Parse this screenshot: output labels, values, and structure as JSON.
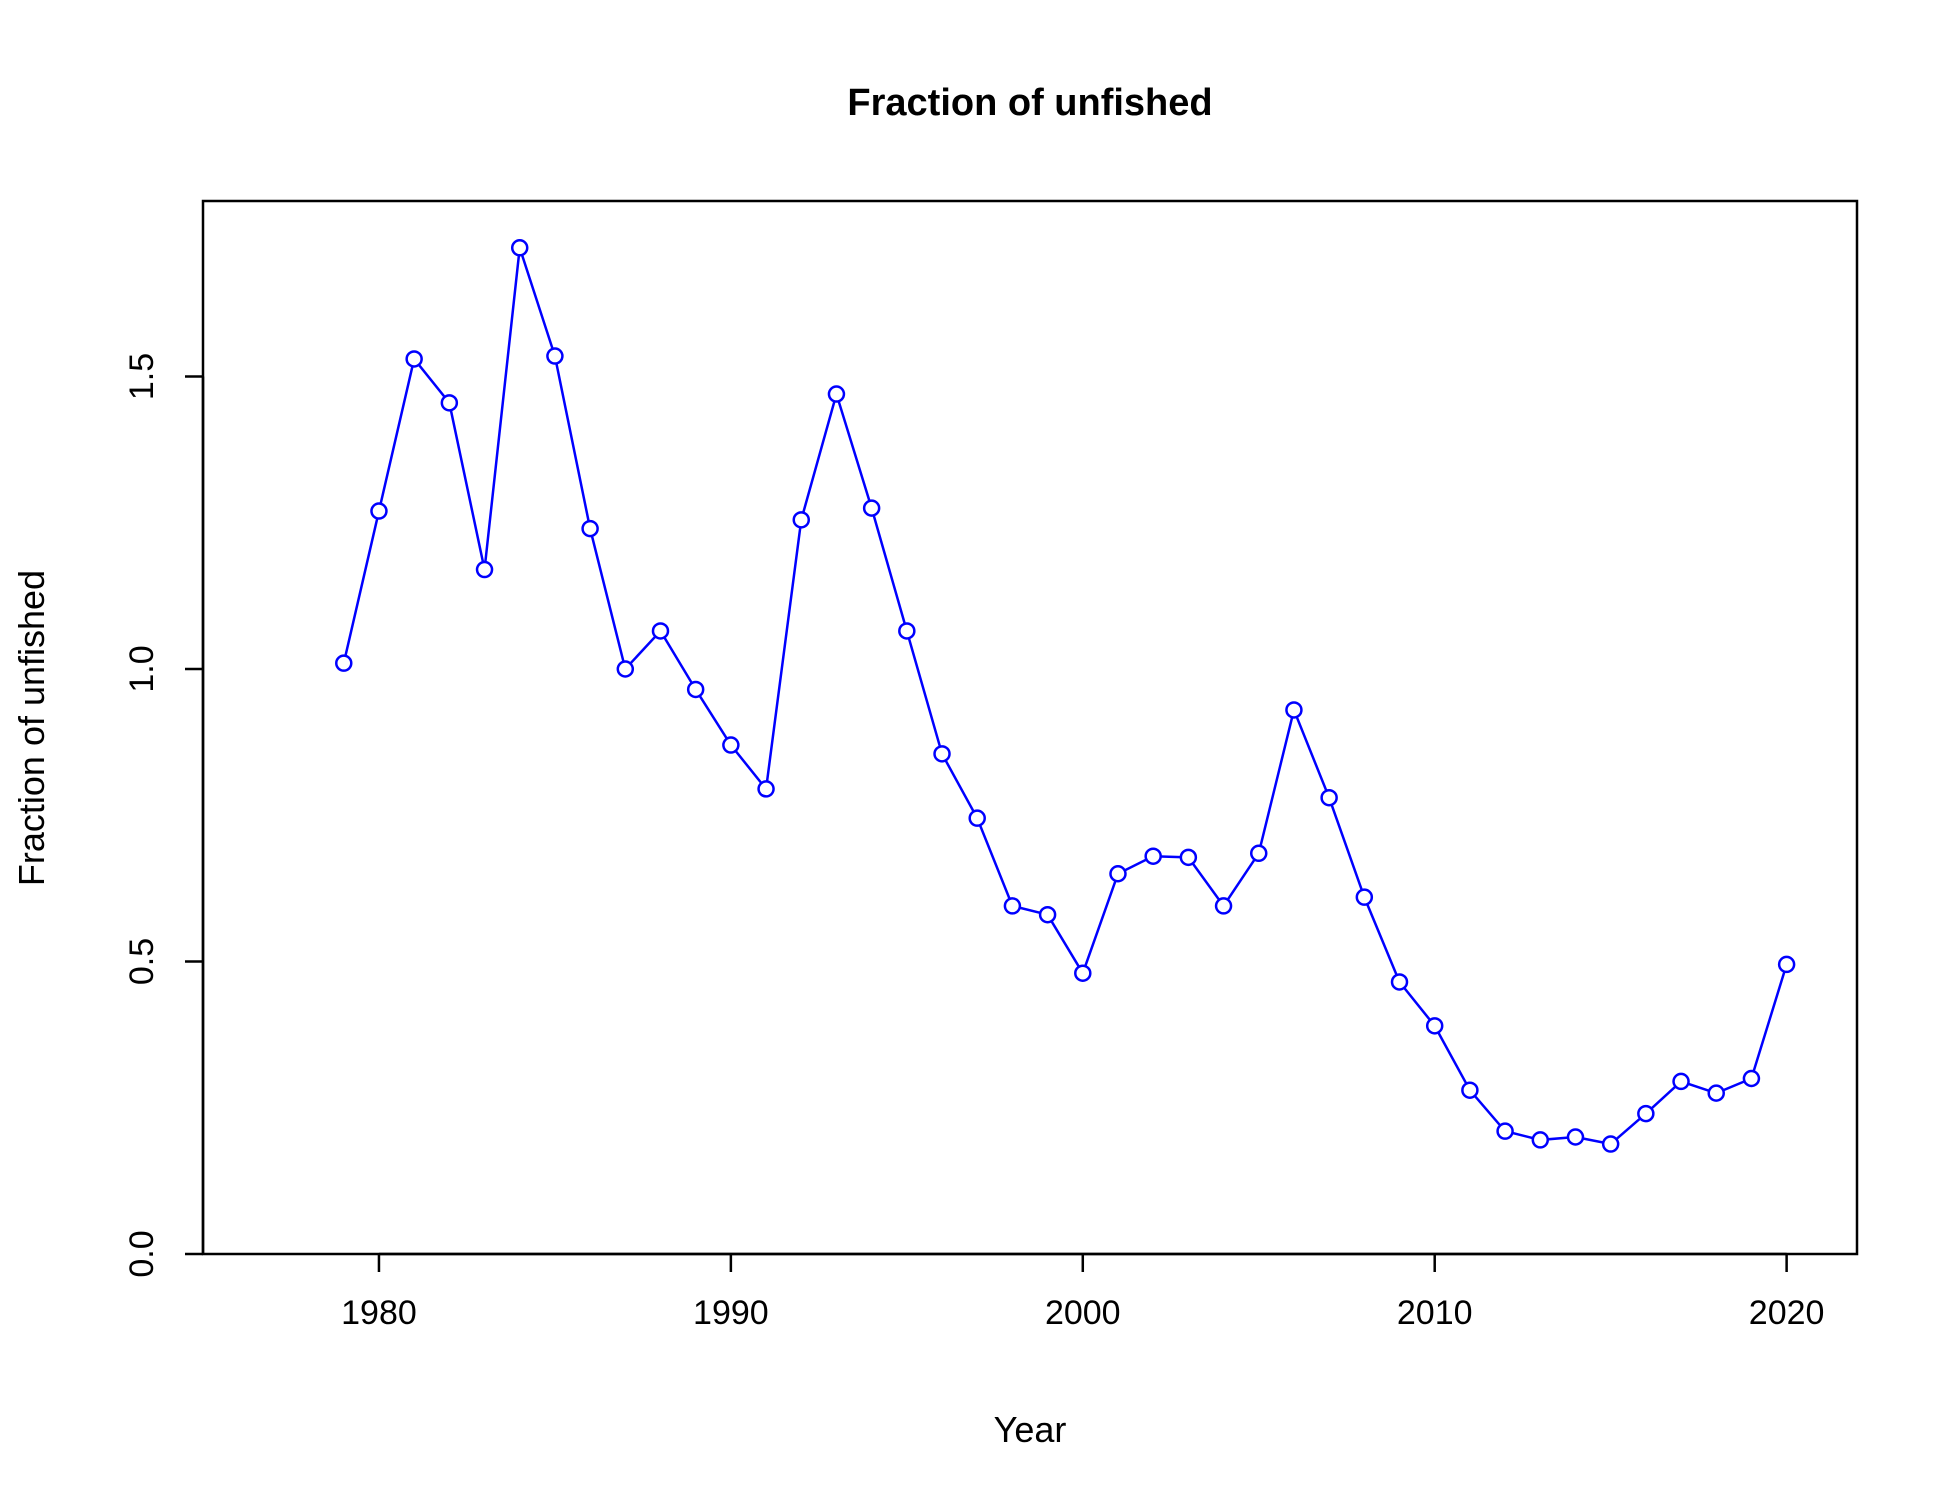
{
  "chart_data": {
    "type": "line",
    "title": "Fraction of unfished",
    "xlabel": "Year",
    "ylabel": "Fraction of unfished",
    "xlim": [
      1975,
      2022
    ],
    "ylim": [
      0,
      1.8
    ],
    "x_ticks": [
      1980,
      1990,
      2000,
      2010,
      2020
    ],
    "y_ticks": [
      0.0,
      0.5,
      1.0,
      1.5
    ],
    "x_tick_labels": [
      "1980",
      "1990",
      "2000",
      "2010",
      "2020"
    ],
    "y_tick_labels": [
      "0.0",
      "0.5",
      "1.0",
      "1.5"
    ],
    "grid": false,
    "legend": "none",
    "series": [
      {
        "color": "#0000ff",
        "marker": "open-circle",
        "x": [
          1979,
          1980,
          1981,
          1982,
          1983,
          1984,
          1985,
          1986,
          1987,
          1988,
          1989,
          1990,
          1991,
          1992,
          1993,
          1994,
          1995,
          1996,
          1997,
          1998,
          1999,
          2000,
          2001,
          2002,
          2003,
          2004,
          2005,
          2006,
          2007,
          2008,
          2009,
          2010,
          2011,
          2012,
          2013,
          2014,
          2015,
          2016,
          2017,
          2018,
          2019,
          2020
        ],
        "y": [
          1.01,
          1.27,
          1.53,
          1.455,
          1.17,
          1.72,
          1.535,
          1.24,
          1.0,
          1.065,
          0.965,
          0.87,
          0.795,
          1.255,
          1.47,
          1.275,
          1.065,
          0.855,
          0.745,
          0.595,
          0.58,
          0.48,
          0.65,
          0.68,
          0.678,
          0.595,
          0.685,
          0.93,
          0.78,
          0.61,
          0.465,
          0.39,
          0.28,
          0.21,
          0.195,
          0.2,
          0.188,
          0.24,
          0.295,
          0.275,
          0.3,
          0.495
        ]
      }
    ]
  }
}
